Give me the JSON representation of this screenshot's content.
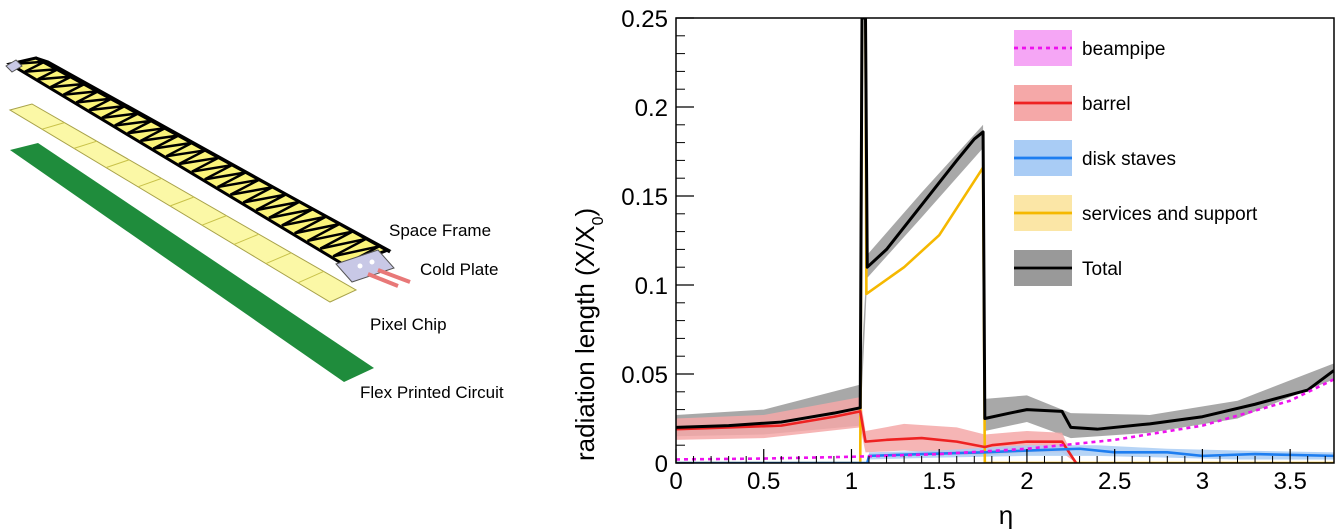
{
  "diagram": {
    "labels": {
      "space_frame": "Space Frame",
      "cold_plate": "Cold Plate",
      "pixel_chip": "Pixel Chip",
      "flex_circuit": "Flex Printed Circuit"
    },
    "colors": {
      "frame_fill": "#fbf47a",
      "frame_line": "#000000",
      "chip_fill": "#fbf8a6",
      "chip_line": "#c9c24a",
      "flex_fill": "#1f8c3c",
      "cold_plate": "#c8c8e6",
      "pipes": "#e87878"
    }
  },
  "chart_data": {
    "type": "line",
    "xlabel": "η",
    "ylabel": "radiation length (X/X",
    "ylabel_sub": "0",
    "ylabel_close": ")",
    "xlim": [
      0,
      3.75
    ],
    "ylim": [
      0,
      0.25
    ],
    "xticks": [
      "0",
      "0.5",
      "1",
      "1.5",
      "2",
      "2.5",
      "3",
      "3.5"
    ],
    "xtick_values": [
      0,
      0.5,
      1,
      1.5,
      2,
      2.5,
      3,
      3.5
    ],
    "yticks": [
      "0",
      "0.05",
      "0.1",
      "0.15",
      "0.2",
      "0.25"
    ],
    "ytick_values": [
      0,
      0.05,
      0.1,
      0.15,
      0.2,
      0.25
    ],
    "series": [
      {
        "name": "beampipe",
        "color": "#ee11ee",
        "band_color": "#f5a6f5",
        "dashed": true,
        "points": [
          [
            0,
            0.002
          ],
          [
            0.5,
            0.0025
          ],
          [
            1.0,
            0.0035
          ],
          [
            1.5,
            0.005
          ],
          [
            2.0,
            0.008
          ],
          [
            2.5,
            0.013
          ],
          [
            3.0,
            0.021
          ],
          [
            3.5,
            0.035
          ],
          [
            3.75,
            0.047
          ]
        ],
        "band": []
      },
      {
        "name": "barrel",
        "color": "#ee2222",
        "band_color": "#f5a8a8",
        "dashed": false,
        "points": [
          [
            0,
            0.019
          ],
          [
            0.3,
            0.02
          ],
          [
            0.6,
            0.021
          ],
          [
            0.9,
            0.026
          ],
          [
            1.05,
            0.029
          ],
          [
            1.08,
            0.012
          ],
          [
            1.2,
            0.013
          ],
          [
            1.4,
            0.014
          ],
          [
            1.6,
            0.012
          ],
          [
            1.76,
            0.009
          ],
          [
            1.8,
            0.01
          ],
          [
            2.0,
            0.012
          ],
          [
            2.2,
            0.012
          ],
          [
            2.28,
            0.0
          ]
        ],
        "band": [
          [
            0,
            0.013,
            0.025
          ],
          [
            0.5,
            0.014,
            0.027
          ],
          [
            1.05,
            0.02,
            0.037
          ],
          [
            1.08,
            0.006,
            0.018
          ],
          [
            1.3,
            0.007,
            0.022
          ],
          [
            1.6,
            0.005,
            0.02
          ],
          [
            1.76,
            0.004,
            0.016
          ],
          [
            2.0,
            0.006,
            0.018
          ],
          [
            2.2,
            0.006,
            0.017
          ],
          [
            2.28,
            0.0,
            0.0
          ]
        ]
      },
      {
        "name": "disk staves",
        "color": "#1e7ef0",
        "band_color": "#a9ccf5",
        "dashed": false,
        "points": [
          [
            0,
            0.0
          ],
          [
            1.09,
            0.0
          ],
          [
            1.1,
            0.004
          ],
          [
            1.4,
            0.005
          ],
          [
            1.76,
            0.006
          ],
          [
            2.0,
            0.007
          ],
          [
            2.3,
            0.008
          ],
          [
            2.5,
            0.006
          ],
          [
            2.8,
            0.006
          ],
          [
            3.0,
            0.004
          ],
          [
            3.3,
            0.005
          ],
          [
            3.75,
            0.004
          ]
        ],
        "band": [
          [
            1.1,
            0.002,
            0.006
          ],
          [
            1.5,
            0.003,
            0.007
          ],
          [
            2.0,
            0.004,
            0.01
          ],
          [
            2.4,
            0.004,
            0.01
          ],
          [
            2.8,
            0.003,
            0.008
          ],
          [
            3.2,
            0.002,
            0.007
          ],
          [
            3.75,
            0.002,
            0.006
          ]
        ]
      },
      {
        "name": "services and support",
        "color": "#f5b800",
        "band_color": "#fbe6a6",
        "dashed": false,
        "points": [
          [
            0,
            0.0
          ],
          [
            1.05,
            0.0
          ],
          [
            1.06,
            0.25
          ],
          [
            1.08,
            0.25
          ],
          [
            1.085,
            0.095
          ],
          [
            1.3,
            0.11
          ],
          [
            1.5,
            0.128
          ],
          [
            1.75,
            0.166
          ],
          [
            1.76,
            0.0
          ],
          [
            3.75,
            0.0
          ]
        ],
        "band": []
      },
      {
        "name": "Total",
        "color": "#000000",
        "band_color": "#999999",
        "dashed": false,
        "points": [
          [
            0,
            0.02
          ],
          [
            0.3,
            0.021
          ],
          [
            0.6,
            0.023
          ],
          [
            0.9,
            0.028
          ],
          [
            1.05,
            0.031
          ],
          [
            1.06,
            0.25
          ],
          [
            1.08,
            0.25
          ],
          [
            1.09,
            0.11
          ],
          [
            1.2,
            0.12
          ],
          [
            1.4,
            0.145
          ],
          [
            1.6,
            0.17
          ],
          [
            1.7,
            0.182
          ],
          [
            1.75,
            0.186
          ],
          [
            1.76,
            0.025
          ],
          [
            1.9,
            0.028
          ],
          [
            2.0,
            0.03
          ],
          [
            2.2,
            0.029
          ],
          [
            2.25,
            0.02
          ],
          [
            2.4,
            0.019
          ],
          [
            2.7,
            0.022
          ],
          [
            3.0,
            0.026
          ],
          [
            3.3,
            0.033
          ],
          [
            3.6,
            0.041
          ],
          [
            3.75,
            0.052
          ]
        ],
        "band": [
          [
            0,
            0.015,
            0.027
          ],
          [
            0.5,
            0.016,
            0.03
          ],
          [
            1.05,
            0.021,
            0.044
          ],
          [
            1.09,
            0.104,
            0.117
          ],
          [
            1.4,
            0.138,
            0.152
          ],
          [
            1.75,
            0.177,
            0.19
          ],
          [
            1.76,
            0.018,
            0.036
          ],
          [
            2.0,
            0.023,
            0.038
          ],
          [
            2.25,
            0.014,
            0.028
          ],
          [
            2.7,
            0.017,
            0.027
          ],
          [
            3.2,
            0.025,
            0.035
          ],
          [
            3.75,
            0.047,
            0.056
          ]
        ]
      }
    ]
  }
}
